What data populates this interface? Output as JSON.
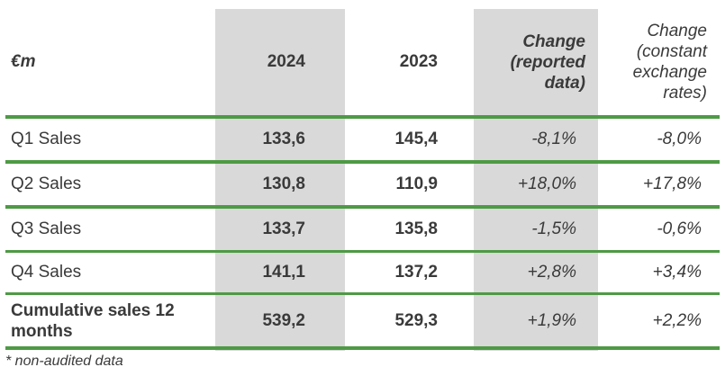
{
  "table": {
    "header": {
      "label": "€m",
      "y2024": "2024",
      "y2023": "2023",
      "change_reported": [
        "Change",
        "(reported",
        "data)"
      ],
      "change_constant": [
        "Change",
        "(constant",
        "exchange",
        "rates)"
      ]
    },
    "rows": [
      {
        "label": "Q1 Sales",
        "y2024": "133,6",
        "y2023": "145,4",
        "reported": "-8,1%",
        "constant": "-8,0%"
      },
      {
        "label": "Q2 Sales",
        "y2024": "130,8",
        "y2023": "110,9",
        "reported": "+18,0%",
        "constant": "+17,8%"
      },
      {
        "label": "Q3 Sales",
        "y2024": "133,7",
        "y2023": "135,8",
        "reported": "-1,5%",
        "constant": "-0,6%"
      },
      {
        "label": "Q4 Sales",
        "y2024": "141,1",
        "y2023": "137,2",
        "reported": "+2,8%",
        "constant": "+3,4%"
      }
    ],
    "total": {
      "label": [
        "Cumulative sales 12",
        "months"
      ],
      "y2024": "539,2",
      "y2023": "529,3",
      "reported": "+1,9%",
      "constant": "+2,2%"
    }
  },
  "footnote": "* non-audited data",
  "colors": {
    "rule": "#4e9a45",
    "shade": "#d9d9d9",
    "text": "#3a3a3a"
  }
}
